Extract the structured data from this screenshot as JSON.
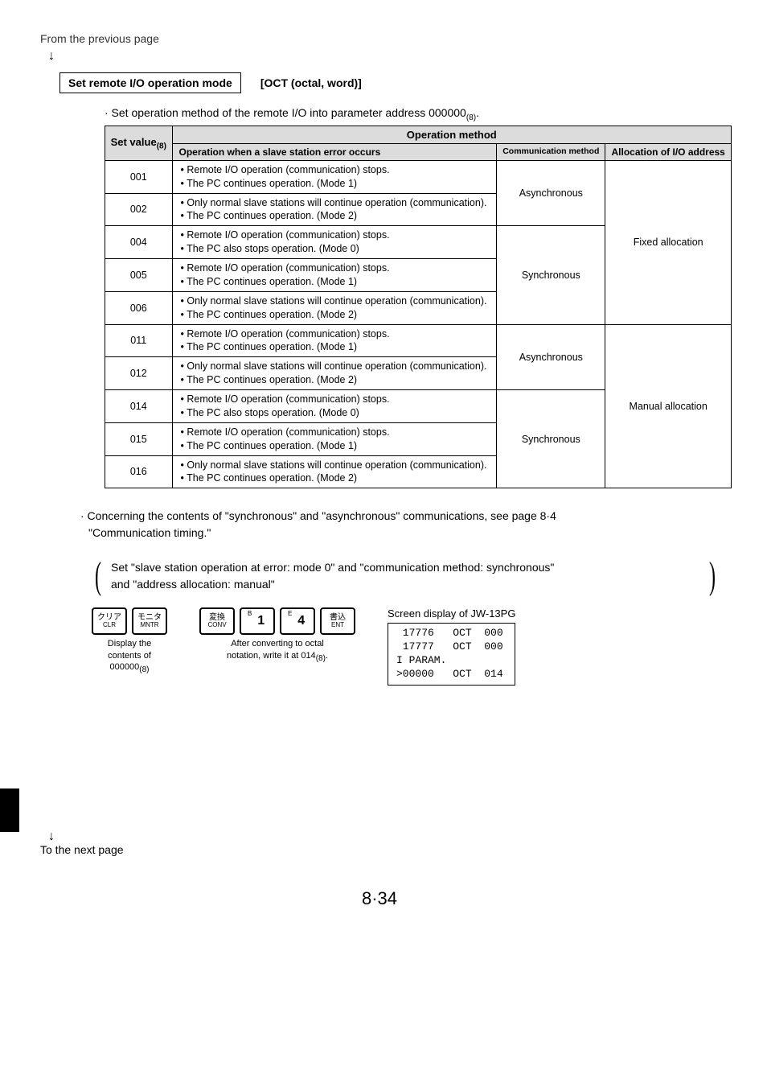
{
  "page": {
    "from_prev": "From the previous page",
    "to_next": "To the next page",
    "page_number": "8·34"
  },
  "section": {
    "box_label": "Set remote I/O operation mode",
    "right_label": "[OCT (octal, word)]",
    "set_op_prefix": "· Set operation method of the remote I/O into parameter address 000000",
    "set_op_sub": "(8)",
    "set_op_suffix": "."
  },
  "table": {
    "hdr_set_value": "Set value",
    "hdr_set_value_sub": "(8)",
    "hdr_op_method": "Operation method",
    "hdr_op_when": "Operation when a slave station error occurs",
    "hdr_comm": "Communication method",
    "hdr_alloc": "Allocation of I/O address",
    "rows": [
      {
        "val": "001",
        "b1": "• Remote I/O operation (communication) stops.",
        "b2": "• The PC continues operation. (Mode 1)"
      },
      {
        "val": "002",
        "b1": "• Only normal slave stations will continue operation (communication).",
        "b2": "• The PC continues operation. (Mode 2)"
      },
      {
        "val": "004",
        "b1": "• Remote I/O operation (communication) stops.",
        "b2": "• The PC also stops operation. (Mode 0)"
      },
      {
        "val": "005",
        "b1": "• Remote I/O operation (communication) stops.",
        "b2": "• The PC continues operation. (Mode 1)"
      },
      {
        "val": "006",
        "b1": "• Only normal slave stations will continue operation (communication).",
        "b2": "• The PC continues operation. (Mode 2)"
      },
      {
        "val": "011",
        "b1": "• Remote I/O operation (communication) stops.",
        "b2": "• The PC continues operation. (Mode 1)"
      },
      {
        "val": "012",
        "b1": "• Only normal slave stations will continue operation (communication).",
        "b2": "• The PC continues operation. (Mode 2)"
      },
      {
        "val": "014",
        "b1": "• Remote I/O operation (communication) stops.",
        "b2": "• The PC also stops operation. (Mode 0)"
      },
      {
        "val": "015",
        "b1": "• Remote I/O operation (communication) stops.",
        "b2": "• The PC continues operation. (Mode 1)"
      },
      {
        "val": "016",
        "b1": "• Only normal slave stations will continue operation (communication).",
        "b2": "• The PC continues operation. (Mode 2)"
      }
    ],
    "comm_async": "Asynchronous",
    "comm_sync": "Synchronous",
    "alloc_fixed": "Fixed allocation",
    "alloc_manual": "Manual allocation"
  },
  "notes": {
    "concerning_l1": "· Concerning the contents of \"synchronous\" and \"asynchronous\" communications, see page 8·4",
    "concerning_l2": "\"Communication timing.\"",
    "paren_l1": "Set \"slave station operation at error: mode 0\" and \"communication method: synchronous\"",
    "paren_l2": "and \"address allocation: manual\""
  },
  "keys": {
    "clr_jp": "クリア",
    "clr_en": "CLR",
    "mntr_jp": "モニタ",
    "mntr_en": "MNTR",
    "conv_jp": "変換",
    "conv_en": "CONV",
    "ent_jp": "書込",
    "ent_en": "ENT",
    "k1_sup": "B",
    "k1_big": "1",
    "k4_sup": "E",
    "k4_big": "4",
    "cap_left_l1": "Display the",
    "cap_left_l2": "contents of",
    "cap_left_l3": "000000",
    "cap_left_sub": "(8)",
    "cap_right_l1": "After converting to octal",
    "cap_right_l2": "notation, write it at 014",
    "cap_right_sub": "(8)",
    "cap_right_suffix": "."
  },
  "screen": {
    "label": "Screen display of JW-13PG",
    "content": " 17776   OCT  000\n 17777   OCT  000\nI PARAM.\n>00000   OCT  014"
  }
}
